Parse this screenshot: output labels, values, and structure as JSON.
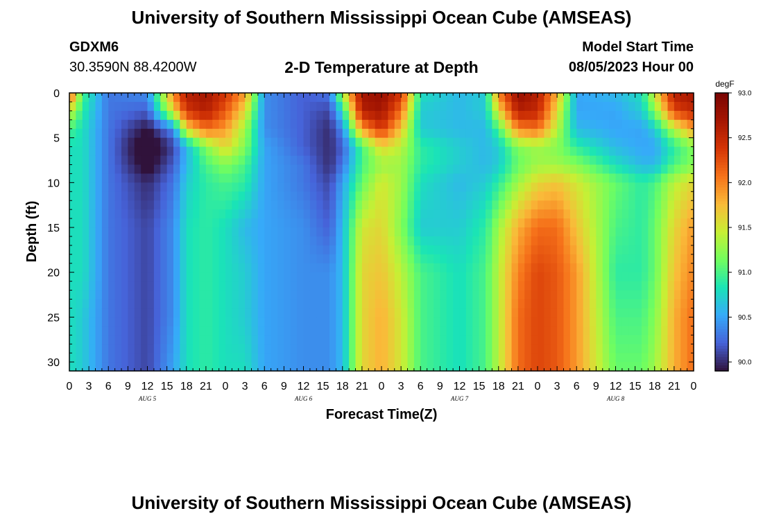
{
  "page": {
    "title_top": "University of Southern Mississippi Ocean Cube (AMSEAS)",
    "title_bottom": "University of Southern Mississippi Ocean Cube (AMSEAS)",
    "station_id": "GDXM6",
    "station_coords": "30.3590N  88.4200W",
    "chart_title": "2-D Temperature at Depth",
    "model_start_label": "Model Start Time",
    "model_start_value": "08/05/2023 Hour 00"
  },
  "chart_data": {
    "type": "heatmap",
    "title": "2-D Temperature at Depth",
    "xlabel": "Forecast Time(Z)",
    "ylabel": "Depth (ft)",
    "units": "degF",
    "x_range_hours": [
      0,
      96
    ],
    "y_range_ft": [
      0,
      31
    ],
    "x_tick_labels": [
      "0",
      "3",
      "6",
      "9",
      "12",
      "15",
      "18",
      "21",
      "0",
      "3",
      "6",
      "9",
      "12",
      "15",
      "18",
      "21",
      "0",
      "3",
      "6",
      "9",
      "12",
      "15",
      "18",
      "21",
      "0",
      "3",
      "6",
      "9",
      "12",
      "15",
      "18",
      "21",
      "0"
    ],
    "y_ticks": [
      0,
      5,
      10,
      15,
      20,
      25,
      30
    ],
    "day_labels": [
      "AUG 5",
      "AUG 6",
      "AUG 7",
      "AUG 8"
    ],
    "colorbar": {
      "min": 89.9,
      "max": 93.0,
      "ticks": [
        "93.0",
        "92.5",
        "92.0",
        "91.5",
        "91.0",
        "90.5",
        "90.0"
      ]
    },
    "temperature_profile": {
      "hours": [
        0,
        2,
        6,
        12,
        16,
        18,
        21,
        24,
        27,
        30,
        36,
        40,
        42,
        45,
        48,
        51,
        54,
        60,
        64,
        66,
        69,
        72,
        75,
        78,
        84,
        88,
        90,
        93,
        96
      ],
      "depths_ft": [
        0,
        2,
        4,
        6,
        8,
        10,
        15,
        20,
        25,
        31
      ],
      "values_degF": [
        [
          92.3,
          91.5,
          91.0,
          90.8,
          90.8,
          90.8,
          90.8,
          90.8,
          90.8,
          90.8
        ],
        [
          91.0,
          90.9,
          90.8,
          90.8,
          90.8,
          90.8,
          90.8,
          90.8,
          90.7,
          90.7
        ],
        [
          90.3,
          90.3,
          90.3,
          90.3,
          90.3,
          90.3,
          90.3,
          90.3,
          90.3,
          90.3
        ],
        [
          90.4,
          90.2,
          89.9,
          89.7,
          89.8,
          90.0,
          90.1,
          90.1,
          90.1,
          90.1
        ],
        [
          92.0,
          91.6,
          90.4,
          90.1,
          90.2,
          90.3,
          90.4,
          90.4,
          90.4,
          90.5
        ],
        [
          92.6,
          92.4,
          91.6,
          90.6,
          90.6,
          90.7,
          90.8,
          90.8,
          90.8,
          90.8
        ],
        [
          92.7,
          92.6,
          92.1,
          91.2,
          91.0,
          90.9,
          90.9,
          90.9,
          90.9,
          90.9
        ],
        [
          92.4,
          92.2,
          91.9,
          91.6,
          91.2,
          91.0,
          90.8,
          90.8,
          90.8,
          90.8
        ],
        [
          91.9,
          91.6,
          91.3,
          91.2,
          91.0,
          90.9,
          90.6,
          90.7,
          90.7,
          90.8
        ],
        [
          90.4,
          90.4,
          90.4,
          90.5,
          90.5,
          90.5,
          90.5,
          90.5,
          90.5,
          90.5
        ],
        [
          90.2,
          90.2,
          90.2,
          90.2,
          90.3,
          90.3,
          90.4,
          90.4,
          90.4,
          90.4
        ],
        [
          90.3,
          90.1,
          90.0,
          90.0,
          90.0,
          90.1,
          90.2,
          90.4,
          90.4,
          90.4
        ],
        [
          91.4,
          90.8,
          90.4,
          90.2,
          90.3,
          90.5,
          90.6,
          90.6,
          90.6,
          90.6
        ],
        [
          92.7,
          92.6,
          91.9,
          91.0,
          91.0,
          91.1,
          91.5,
          91.6,
          91.6,
          91.6
        ],
        [
          92.8,
          92.7,
          92.4,
          91.6,
          91.3,
          91.5,
          91.6,
          91.7,
          91.8,
          91.8
        ],
        [
          92.4,
          92.1,
          91.7,
          91.4,
          91.3,
          91.3,
          91.2,
          91.4,
          91.5,
          91.5
        ],
        [
          90.8,
          90.7,
          90.7,
          90.9,
          90.9,
          90.8,
          90.7,
          91.0,
          91.0,
          91.0
        ],
        [
          90.6,
          90.6,
          90.6,
          90.7,
          90.7,
          90.6,
          90.7,
          90.8,
          90.8,
          90.8
        ],
        [
          90.7,
          90.7,
          90.6,
          90.6,
          90.6,
          90.7,
          90.9,
          91.0,
          91.0,
          91.0
        ],
        [
          92.0,
          91.6,
          91.0,
          90.7,
          90.7,
          90.9,
          91.3,
          91.4,
          91.4,
          91.4
        ],
        [
          92.8,
          92.6,
          92.0,
          91.2,
          91.1,
          91.3,
          91.8,
          92.0,
          92.1,
          92.1
        ],
        [
          92.6,
          92.5,
          92.1,
          91.3,
          91.3,
          91.6,
          92.1,
          92.3,
          92.3,
          92.3
        ],
        [
          91.8,
          91.6,
          91.4,
          91.2,
          91.3,
          91.7,
          92.1,
          92.2,
          92.2,
          92.2
        ],
        [
          90.5,
          90.5,
          90.6,
          90.9,
          91.2,
          91.5,
          91.7,
          91.9,
          91.9,
          91.9
        ],
        [
          90.6,
          90.5,
          90.5,
          90.6,
          90.8,
          91.1,
          91.0,
          90.9,
          91.0,
          91.1
        ],
        [
          90.8,
          90.7,
          90.5,
          90.5,
          90.6,
          90.9,
          90.9,
          90.9,
          91.0,
          91.1
        ],
        [
          91.5,
          91.2,
          90.7,
          90.5,
          90.6,
          91.0,
          91.1,
          91.1,
          91.2,
          91.3
        ],
        [
          92.6,
          92.3,
          91.4,
          90.9,
          91.0,
          91.4,
          91.6,
          91.7,
          91.8,
          91.8
        ],
        [
          92.7,
          92.5,
          91.9,
          91.2,
          91.2,
          91.6,
          91.9,
          92.0,
          92.1,
          92.1
        ]
      ]
    }
  }
}
